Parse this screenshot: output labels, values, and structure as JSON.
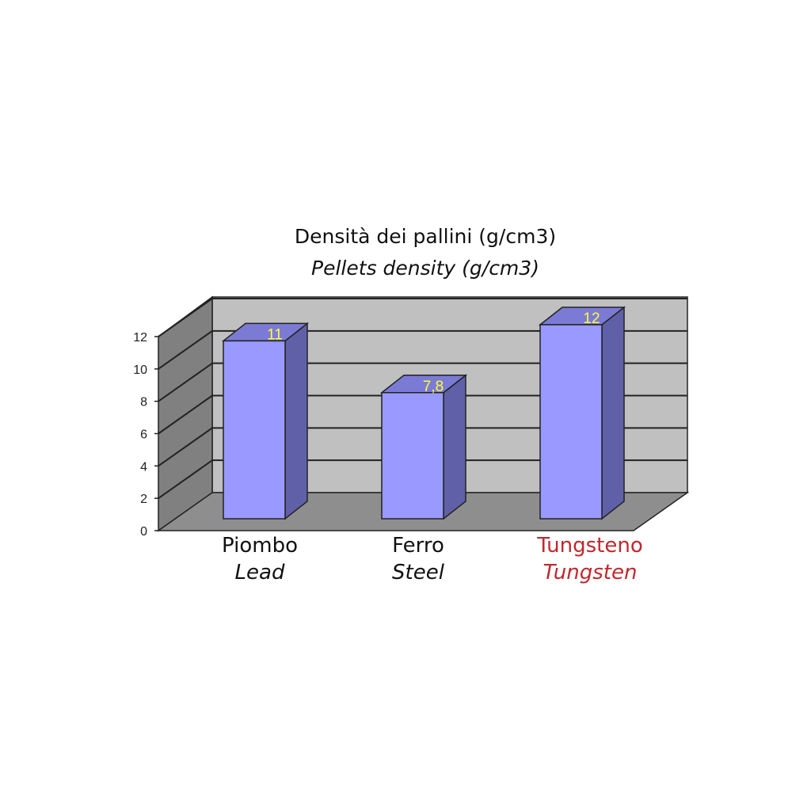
{
  "chart_data": {
    "type": "bar",
    "style": "3d-column",
    "title": "Densità dei pallini (g/cm3)",
    "subtitle": "Pellets density (g/cm3)",
    "categories": [
      {
        "label": "Piombo",
        "label_en": "Lead",
        "color": "#111111"
      },
      {
        "label": "Ferro",
        "label_en": "Steel",
        "color": "#111111"
      },
      {
        "label": "Tungsteno",
        "label_en": "Tungsten",
        "color": "#c0282d"
      }
    ],
    "values": [
      11,
      7.8,
      12
    ],
    "data_labels": [
      "11",
      "7,8",
      "12"
    ],
    "ylim": [
      0,
      12
    ],
    "yticks": [
      "0",
      "2",
      "4",
      "6",
      "8",
      "10",
      "12"
    ],
    "grid": true,
    "legend": "none",
    "colors": {
      "bar_front": "#9999ff",
      "bar_side": "#6060a8",
      "bar_top": "#7b7bd6",
      "data_label": "#ffff33",
      "back_wall": "#c0c0c0",
      "side_wall": "#808080",
      "floor": "#8e8e8e"
    }
  }
}
